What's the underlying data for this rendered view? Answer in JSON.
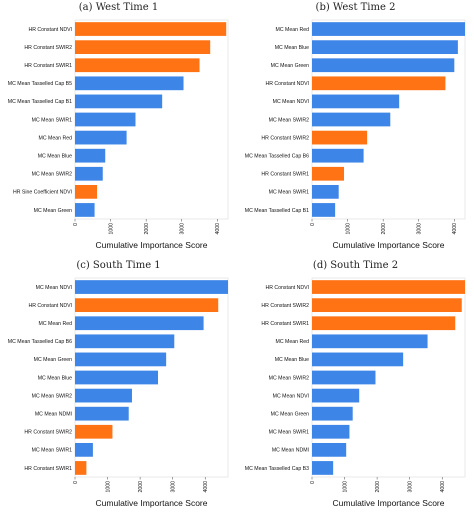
{
  "colors": {
    "mc": "#3d85e6",
    "hr": "#ff7315"
  },
  "chart_data": [
    {
      "type": "bar",
      "orientation": "horizontal",
      "title": "(a) West Time 1",
      "xlabel": "Cumulative Importance Score",
      "xlim": [
        0,
        4300
      ],
      "xticks": [
        "0",
        "1000",
        "2000",
        "3000",
        "4000"
      ],
      "categories": [
        "HR Constant NDVI",
        "HR Constant SWIR2",
        "HR Constant SWIR1",
        "MC Mean Tasselled Cap B5",
        "MC Mean Tasselled Cap B1",
        "MC Mean SWIR1",
        "MC Mean Red",
        "MC Mean Blue",
        "MC Mean SWIR2",
        "HR Sine Coefficient NDVI",
        "MC Mean Green"
      ],
      "values": [
        4250,
        3800,
        3500,
        3050,
        2450,
        1700,
        1450,
        850,
        780,
        620,
        550
      ],
      "groups": [
        "hr",
        "hr",
        "hr",
        "mc",
        "mc",
        "mc",
        "mc",
        "mc",
        "mc",
        "hr",
        "mc"
      ]
    },
    {
      "type": "bar",
      "orientation": "horizontal",
      "title": "(b) West Time 2",
      "xlabel": "Cumulative Importance Score",
      "xlim": [
        0,
        4300
      ],
      "xticks": [
        "0",
        "1000",
        "2000",
        "3000",
        "4000"
      ],
      "categories": [
        "MC Mean Red",
        "MC Mean Blue",
        "MC Mean Green",
        "HR Constant NDVI",
        "MC Mean NDVI",
        "MC Mean SWIR2",
        "HR Constant SWIR2",
        "MC Mean Tasselled Cap B6",
        "HR Constant SWIR1",
        "MC Mean SWIR1",
        "MC Mean Tasselled Cap B1"
      ],
      "values": [
        4300,
        4100,
        4000,
        3750,
        2450,
        2200,
        1550,
        1450,
        900,
        750,
        650
      ],
      "groups": [
        "mc",
        "mc",
        "mc",
        "hr",
        "mc",
        "mc",
        "hr",
        "mc",
        "hr",
        "mc",
        "mc"
      ]
    },
    {
      "type": "bar",
      "orientation": "horizontal",
      "title": "(c) South Time 1",
      "xlabel": "Cumulative Importance Score",
      "xlim": [
        0,
        4700
      ],
      "xticks": [
        "0",
        "1000",
        "2000",
        "3000",
        "4000"
      ],
      "categories": [
        "MC Mean NDVI",
        "HR Constant NDVI",
        "MC Mean Red",
        "MC Mean Tasselled Cap B6",
        "MC Mean Green",
        "MC Mean Blue",
        "MC Mean SWIR2",
        "MC Mean NDMI",
        "HR Constant SWIR2",
        "MC Mean SWIR1",
        "HR Constant SWIR1"
      ],
      "values": [
        4700,
        4400,
        3950,
        3050,
        2800,
        2550,
        1750,
        1650,
        1150,
        550,
        350
      ],
      "groups": [
        "mc",
        "hr",
        "mc",
        "mc",
        "mc",
        "mc",
        "mc",
        "mc",
        "hr",
        "mc",
        "hr"
      ]
    },
    {
      "type": "bar",
      "orientation": "horizontal",
      "title": "(d) South Time 2",
      "xlabel": "Cumulative Importance Score",
      "xlim": [
        0,
        4700
      ],
      "xticks": [
        "0",
        "1000",
        "2000",
        "3000",
        "4000"
      ],
      "categories": [
        "HR Constant NDVI",
        "HR Constant SWIR2",
        "HR Constant SWIR1",
        "MC Mean Red",
        "MC Mean Blue",
        "MC Mean SWIR2",
        "MC Mean NDVI",
        "MC Mean Green",
        "MC Mean SWIR1",
        "MC Mean NDMI",
        "MC Mean Tasselled Cap B3"
      ],
      "values": [
        4700,
        4600,
        4400,
        3550,
        2800,
        1950,
        1450,
        1250,
        1150,
        1050,
        650
      ],
      "groups": [
        "hr",
        "hr",
        "hr",
        "mc",
        "mc",
        "mc",
        "mc",
        "mc",
        "mc",
        "mc",
        "mc"
      ]
    }
  ]
}
